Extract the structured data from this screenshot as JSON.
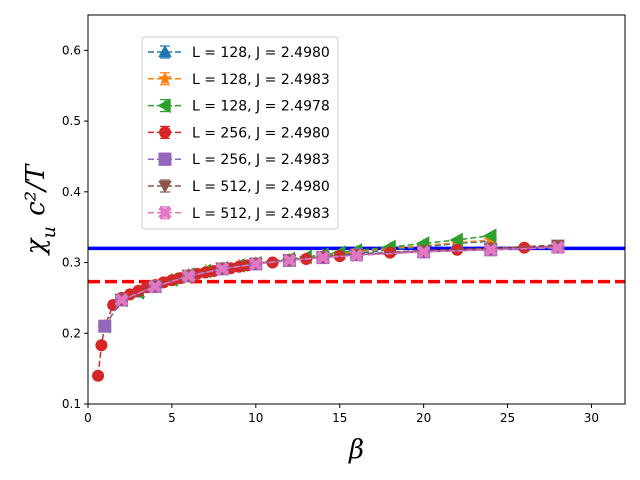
{
  "chart_data": {
    "type": "line",
    "title": "",
    "xlabel": "β",
    "ylabel": "χ_u c²/T",
    "xlim": [
      0,
      32
    ],
    "ylim": [
      0.1,
      0.65
    ],
    "xticks": [
      0,
      5,
      10,
      15,
      20,
      25,
      30
    ],
    "yticks": [
      0.1,
      0.2,
      0.3,
      0.4,
      0.5,
      0.6
    ],
    "xtick_labels": [
      "0",
      "5",
      "10",
      "15",
      "20",
      "25",
      "30"
    ],
    "ytick_labels": [
      "0.1",
      "0.2",
      "0.3",
      "0.4",
      "0.5",
      "0.6"
    ],
    "legend_position": "upper-left",
    "reference_lines": [
      {
        "name": "blue-solid",
        "y": 0.32,
        "color": "#0000ff",
        "style": "solid"
      },
      {
        "name": "red-dashed",
        "y": 0.273,
        "color": "#ff0000",
        "style": "dashed"
      }
    ],
    "series": [
      {
        "name": "L = 128, J = 2.4980",
        "marker": "triangle-up",
        "color": "#1f77b4",
        "x": [
          1,
          2,
          3,
          4,
          5,
          6,
          7,
          8,
          9,
          10,
          12,
          14,
          16,
          18,
          20,
          22,
          24
        ],
        "y": [
          0.21,
          0.247,
          0.258,
          0.267,
          0.275,
          0.282,
          0.287,
          0.291,
          0.295,
          0.298,
          0.303,
          0.309,
          0.313,
          0.318,
          0.322,
          0.327,
          0.33
        ]
      },
      {
        "name": "L = 128, J = 2.4983",
        "marker": "star",
        "color": "#ff7f0e",
        "x": [
          1,
          2,
          3,
          4,
          5,
          6,
          7,
          8,
          9,
          10,
          12,
          14,
          16,
          18,
          20,
          22,
          24
        ],
        "y": [
          0.21,
          0.248,
          0.259,
          0.268,
          0.276,
          0.283,
          0.288,
          0.292,
          0.296,
          0.299,
          0.304,
          0.31,
          0.315,
          0.32,
          0.324,
          0.328,
          0.332
        ]
      },
      {
        "name": "L = 128, J = 2.4978",
        "marker": "triangle-left",
        "color": "#2ca02c",
        "x": [
          1,
          2,
          3,
          4,
          5,
          6,
          7,
          8,
          9,
          10,
          12,
          13,
          14,
          15,
          16,
          18,
          20,
          22,
          24
        ],
        "y": [
          0.21,
          0.247,
          0.258,
          0.267,
          0.276,
          0.283,
          0.288,
          0.292,
          0.296,
          0.299,
          0.305,
          0.308,
          0.311,
          0.314,
          0.317,
          0.322,
          0.327,
          0.332,
          0.338
        ]
      },
      {
        "name": "L = 256, J = 2.4980",
        "marker": "circle",
        "color": "#d62728",
        "x": [
          0.6,
          0.8,
          1.0,
          1.5,
          2,
          2.5,
          3,
          3.5,
          4,
          4.5,
          5,
          5.5,
          6,
          6.5,
          7,
          7.5,
          8,
          8.5,
          9,
          9.5,
          10,
          11,
          12,
          13,
          14,
          15,
          16,
          18,
          20,
          22,
          24,
          26,
          28
        ],
        "y": [
          0.14,
          0.183,
          0.21,
          0.24,
          0.25,
          0.255,
          0.26,
          0.265,
          0.268,
          0.272,
          0.275,
          0.278,
          0.281,
          0.284,
          0.286,
          0.288,
          0.291,
          0.292,
          0.294,
          0.296,
          0.298,
          0.3,
          0.303,
          0.305,
          0.307,
          0.309,
          0.311,
          0.314,
          0.316,
          0.318,
          0.32,
          0.321,
          0.323
        ]
      },
      {
        "name": "L = 256, J = 2.4983",
        "marker": "square",
        "color": "#9467bd",
        "x": [
          1,
          2,
          4,
          6,
          8,
          10,
          12,
          14,
          16,
          20,
          24,
          28
        ],
        "y": [
          0.21,
          0.247,
          0.266,
          0.281,
          0.291,
          0.298,
          0.303,
          0.307,
          0.311,
          0.315,
          0.318,
          0.322
        ]
      },
      {
        "name": "L = 512, J = 2.4980",
        "marker": "triangle-down",
        "color": "#8c564b",
        "x": [
          2,
          4,
          6,
          8,
          10,
          12,
          14,
          16,
          20,
          24,
          28
        ],
        "y": [
          0.248,
          0.267,
          0.282,
          0.292,
          0.299,
          0.304,
          0.308,
          0.312,
          0.317,
          0.32,
          0.325
        ]
      },
      {
        "name": "L = 512, J = 2.4983",
        "marker": "x-filled",
        "color": "#e377c2",
        "x": [
          2,
          4,
          6,
          8,
          10,
          12,
          14,
          16,
          20,
          24,
          28
        ],
        "y": [
          0.247,
          0.266,
          0.281,
          0.291,
          0.298,
          0.303,
          0.307,
          0.31,
          0.315,
          0.318,
          0.321
        ]
      }
    ]
  }
}
